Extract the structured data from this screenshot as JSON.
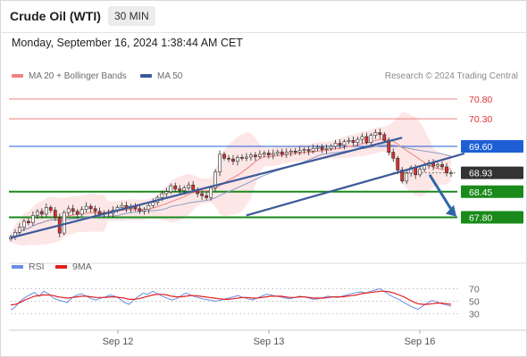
{
  "header": {
    "title": "Crude Oil (WTI)",
    "timeframe": "30 MIN",
    "datetime": "Monday, September 16, 2024 1:38:44 AM CET"
  },
  "legend": {
    "ma20": {
      "label": "MA 20 + Bollinger Bands",
      "color": "#f08080"
    },
    "ma50": {
      "label": "MA 50",
      "color": "#3b5998"
    },
    "copyright": "Research © 2024 Trading Central"
  },
  "colors": {
    "resistance": "#f08080",
    "pivot": "#1f5fd6",
    "support": "#1a8a1a",
    "current_price": "#333333",
    "trendline": "#3b5998",
    "forecast_arrow": "#2e67a8",
    "bollinger_band": "#fde2e2",
    "rsi": "#6b8de3",
    "rsi_ma": "#e02020"
  },
  "chart_data": [
    {
      "type": "candlestick",
      "name": "price",
      "x_labels": [
        "Sep 12",
        "Sep 13",
        "Sep 16"
      ],
      "ylim": [
        67.2,
        71.05
      ],
      "levels": [
        {
          "value": 70.8,
          "label": "70.80",
          "kind": "resistance"
        },
        {
          "value": 70.3,
          "label": "70.30",
          "kind": "resistance"
        },
        {
          "value": 69.6,
          "label": "69.60",
          "kind": "pivot"
        },
        {
          "value": 68.93,
          "label": "68.93",
          "kind": "current"
        },
        {
          "value": 68.45,
          "label": "68.45",
          "kind": "support"
        },
        {
          "value": 67.8,
          "label": "67.80",
          "kind": "support"
        }
      ],
      "close": [
        67.3,
        67.42,
        67.55,
        67.7,
        67.66,
        67.85,
        67.95,
        67.88,
        68.05,
        67.98,
        67.8,
        67.4,
        67.92,
        68.02,
        67.95,
        67.88,
        68.0,
        68.08,
        68.02,
        67.95,
        67.88,
        67.92,
        67.9,
        67.98,
        68.05,
        68.1,
        68.02,
        68.08,
        68.02,
        67.96,
        68.0,
        68.1,
        68.18,
        68.3,
        68.4,
        68.45,
        68.6,
        68.52,
        68.48,
        68.55,
        68.62,
        68.5,
        68.4,
        68.35,
        68.3,
        68.55,
        68.95,
        69.4,
        69.3,
        69.28,
        69.22,
        69.32,
        69.3,
        69.33,
        69.38,
        69.34,
        69.4,
        69.43,
        69.38,
        69.42,
        69.46,
        69.4,
        69.45,
        69.48,
        69.45,
        69.5,
        69.52,
        69.48,
        69.55,
        69.58,
        69.52,
        69.55,
        69.6,
        69.68,
        69.63,
        69.72,
        69.75,
        69.7,
        69.78,
        69.85,
        69.7,
        69.88,
        69.95,
        69.9,
        69.75,
        69.45,
        69.3,
        69.0,
        68.72,
        68.92,
        69.06,
        68.88,
        69.02,
        69.12,
        69.18,
        69.1,
        69.14,
        69.08,
        68.93,
        68.93
      ],
      "trendlines": [
        {
          "from_bar": 0,
          "from_value": 67.28,
          "to_bar": 88,
          "to_value": 69.82
        },
        {
          "from_bar": 53,
          "from_value": 67.85,
          "to_bar": 102,
          "to_value": 69.42
        }
      ],
      "forecast_arrow": {
        "from_value": 68.88,
        "to_value": 67.82
      }
    },
    {
      "type": "line",
      "name": "rsi",
      "series_names": [
        "RSI",
        "9MA"
      ],
      "y_ticks": [
        "70",
        "50",
        "30"
      ],
      "ylim": [
        15,
        85
      ],
      "rsi": [
        36,
        41,
        50,
        56,
        60,
        64,
        58,
        66,
        62,
        55,
        52,
        50,
        48,
        56,
        60,
        62,
        58,
        54,
        52,
        55,
        57,
        60,
        58,
        54,
        48,
        45,
        52,
        58,
        63,
        61,
        66,
        62,
        58,
        55,
        52,
        54,
        59,
        63,
        60,
        57,
        55,
        53,
        52,
        50,
        51,
        53,
        55,
        57,
        59,
        56,
        54,
        52,
        55,
        58,
        61,
        60,
        58,
        57,
        55,
        54,
        56,
        58,
        57,
        55,
        53,
        54,
        56,
        58,
        57,
        56,
        58,
        60,
        62,
        64,
        65,
        63,
        66,
        68,
        70,
        65,
        60,
        56,
        53,
        48,
        44,
        40,
        37,
        42,
        47,
        51,
        49,
        46,
        44,
        42
      ],
      "ma": [
        44,
        45,
        48,
        52,
        55,
        58,
        59,
        60,
        60,
        59,
        57,
        56,
        55,
        56,
        57,
        58,
        58,
        57,
        56,
        56,
        56,
        57,
        57,
        56,
        55,
        53,
        53,
        54,
        56,
        58,
        60,
        61,
        61,
        60,
        58,
        57,
        57,
        58,
        59,
        59,
        58,
        57,
        56,
        55,
        54,
        53,
        53,
        54,
        55,
        56,
        56,
        55,
        55,
        56,
        57,
        58,
        58,
        58,
        57,
        56,
        56,
        57,
        57,
        56,
        55,
        55,
        55,
        56,
        57,
        57,
        57,
        58,
        59,
        60,
        62,
        63,
        64,
        65,
        66,
        66,
        65,
        63,
        60,
        57,
        53,
        49,
        46,
        45,
        45,
        46,
        47,
        47,
        46,
        45
      ]
    }
  ],
  "xaxis": {
    "labels": [
      "Sep 12",
      "Sep 13",
      "Sep 16"
    ]
  },
  "rsi_legend": {
    "rsi_label": "RSI",
    "ma_label": "9MA"
  }
}
